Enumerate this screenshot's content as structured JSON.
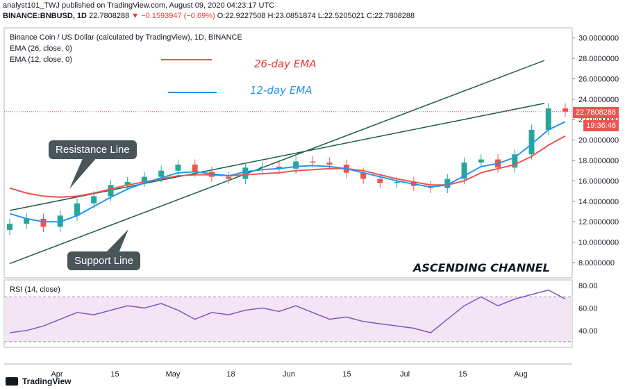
{
  "header": {
    "line1": "analyst101_TWJ published on TradingView.com, August 09, 2020 04:23:17 UTC",
    "symbol": "BINANCE:BNBUSD, 1D",
    "price": "22.7808288",
    "change": "▼ −0.1593947 (−0.69%)",
    "open": "O:22.9227508",
    "high": "H:23.0851874",
    "low": "L:22.5205021",
    "close": "C:22.7808288"
  },
  "legend": {
    "title": "Binance Coin / US Dollar (calculated by TradingView), 1D, BINANCE",
    "ema26": "EMA (26, close, 0)",
    "ema12": "EMA (12, close, 0)"
  },
  "annotations": {
    "ema26_label": "26-day EMA",
    "ema12_label": "12-day EMA",
    "resistance": "Resistance Line",
    "support": "Support Line",
    "channel": "ASCENDING CHANNEL"
  },
  "price_tags": {
    "last": "22.7808288",
    "countdown": "19:36:46"
  },
  "rsi_label": "RSI (14, close)",
  "footer": {
    "brand": "TradingView"
  },
  "colors": {
    "up": "#26a69a",
    "down": "#ef5350",
    "ema26": "#ef5350",
    "ema12": "#2196f3",
    "rsi": "#7e57c2",
    "rsi_fill": "#f3e5f5",
    "channel": "#1b5e46"
  },
  "chart_data": {
    "type": "line",
    "price_axis": {
      "ticks": [
        8,
        10,
        12,
        14,
        16,
        18,
        20,
        22,
        24,
        26,
        28,
        30
      ],
      "ylim": [
        6.5,
        31
      ]
    },
    "rsi_axis": {
      "ticks": [
        40,
        60,
        80
      ],
      "ylim": [
        25,
        85
      ],
      "band": [
        30,
        70
      ]
    },
    "x_ticks": [
      "Apr",
      "15",
      "May",
      "18",
      "Jun",
      "15",
      "Jul",
      "15",
      "Aug"
    ],
    "series": [
      {
        "name": "EMA (26, close, 0)",
        "values": [
          15.3,
          14.8,
          14.5,
          14.4,
          14.5,
          14.8,
          15.2,
          15.6,
          15.9,
          16.2,
          16.5,
          16.6,
          16.6,
          16.5,
          16.6,
          16.7,
          16.8,
          17.0,
          17.1,
          17.2,
          17.2,
          17.0,
          16.6,
          16.2,
          15.9,
          15.6,
          15.6,
          16.0,
          16.8,
          17.2,
          17.6,
          18.4,
          19.5,
          20.4
        ]
      },
      {
        "name": "EMA (12, close, 0)",
        "values": [
          12.8,
          12.3,
          12.0,
          12.0,
          12.6,
          13.5,
          14.4,
          15.2,
          15.8,
          16.3,
          16.8,
          16.9,
          16.7,
          16.5,
          16.9,
          17.1,
          17.2,
          17.4,
          17.5,
          17.4,
          17.2,
          16.8,
          16.4,
          16.0,
          15.7,
          15.4,
          15.6,
          16.5,
          17.4,
          17.7,
          18.3,
          19.6,
          21.0,
          21.8
        ]
      },
      {
        "name": "RSI (14, close)",
        "values": [
          38,
          40,
          44,
          50,
          56,
          54,
          58,
          62,
          60,
          64,
          58,
          50,
          56,
          54,
          58,
          60,
          57,
          62,
          56,
          50,
          52,
          48,
          46,
          44,
          42,
          38,
          50,
          62,
          70,
          62,
          68,
          72,
          76,
          68
        ]
      }
    ],
    "candles_close": [
      11.8,
      12.3,
      11.5,
      12.6,
      13.8,
      14.5,
      15.6,
      15.9,
      16.4,
      17.0,
      17.6,
      16.9,
      16.4,
      16.2,
      17.3,
      17.4,
      17.2,
      17.9,
      17.8,
      17.6,
      16.8,
      16.2,
      15.8,
      15.9,
      15.5,
      15.3,
      16.2,
      17.8,
      18.1,
      17.3,
      18.6,
      21.0,
      23.1,
      22.78
    ],
    "channel_lines": [
      {
        "name": "Resistance Line",
        "x": [
          0,
          33
        ],
        "y": [
          13.1,
          23.6
        ]
      },
      {
        "name": "Support Line",
        "x": [
          0,
          33
        ],
        "y": [
          7.9,
          27.8
        ]
      }
    ]
  }
}
